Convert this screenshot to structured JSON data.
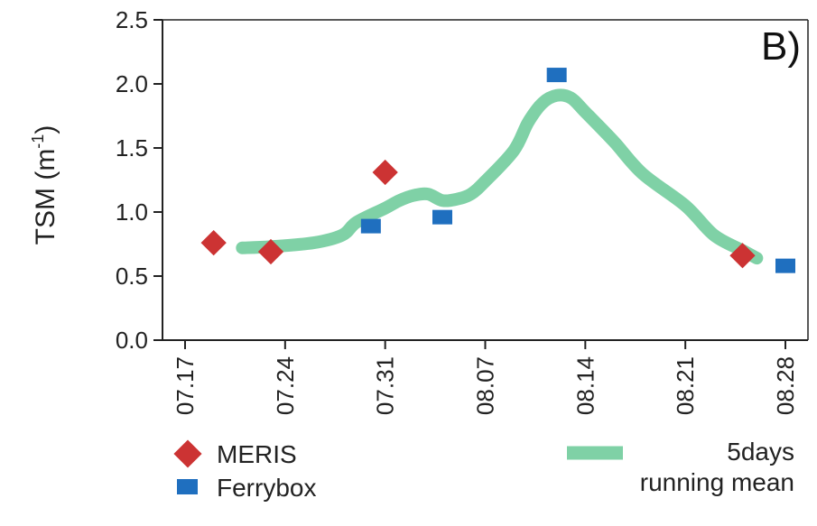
{
  "chart_data": {
    "type": "scatter",
    "panel_label": "B)",
    "ylabel_main": "TSM (m",
    "ylabel_sup": "-1",
    "ylabel_close": ")",
    "ylim": [
      0.0,
      2.5
    ],
    "yticks": [
      "0.0",
      "0.5",
      "1.0",
      "1.5",
      "2.0",
      "2.5"
    ],
    "xticks": [
      "07.17",
      "07.24",
      "07.31",
      "08.07",
      "08.14",
      "08.21",
      "08.28"
    ],
    "xlim_days": [
      0,
      42
    ],
    "grid": false,
    "legend": {
      "meris": "MERIS",
      "ferrybox": "Ferrybox",
      "mean_line1": "5days",
      "mean_line2": "running mean"
    },
    "colors": {
      "meris": "#cc3333",
      "ferrybox": "#1f6fbf",
      "mean": "#7fd1a6"
    },
    "series": [
      {
        "name": "MERIS",
        "marker": "diamond",
        "points": [
          {
            "x": "07.19",
            "y": 0.76
          },
          {
            "x": "07.23",
            "y": 0.69
          },
          {
            "x": "07.31",
            "y": 1.31
          },
          {
            "x": "08.25",
            "y": 0.66
          }
        ]
      },
      {
        "name": "Ferrybox",
        "marker": "square",
        "points": [
          {
            "x": "07.30",
            "y": 0.89
          },
          {
            "x": "08.04",
            "y": 0.96
          },
          {
            "x": "08.12",
            "y": 2.07
          },
          {
            "x": "08.28",
            "y": 0.58
          }
        ]
      },
      {
        "name": "5days running mean",
        "marker": "line",
        "points": [
          {
            "x": "07.21",
            "y": 0.72
          },
          {
            "x": "07.23",
            "y": 0.73
          },
          {
            "x": "07.26",
            "y": 0.76
          },
          {
            "x": "07.28",
            "y": 0.82
          },
          {
            "x": "07.29",
            "y": 0.92
          },
          {
            "x": "07.31",
            "y": 1.03
          },
          {
            "x": "08.01",
            "y": 1.09
          },
          {
            "x": "08.02",
            "y": 1.13
          },
          {
            "x": "08.03",
            "y": 1.14
          },
          {
            "x": "08.04",
            "y": 1.09
          },
          {
            "x": "08.05",
            "y": 1.1
          },
          {
            "x": "08.06",
            "y": 1.14
          },
          {
            "x": "08.07",
            "y": 1.24
          },
          {
            "x": "08.09",
            "y": 1.48
          },
          {
            "x": "08.10",
            "y": 1.7
          },
          {
            "x": "08.11",
            "y": 1.85
          },
          {
            "x": "08.12",
            "y": 1.91
          },
          {
            "x": "08.13",
            "y": 1.89
          },
          {
            "x": "08.14",
            "y": 1.78
          },
          {
            "x": "08.16",
            "y": 1.55
          },
          {
            "x": "08.18",
            "y": 1.3
          },
          {
            "x": "08.21",
            "y": 1.05
          },
          {
            "x": "08.23",
            "y": 0.82
          },
          {
            "x": "08.25",
            "y": 0.7
          },
          {
            "x": "08.26",
            "y": 0.64
          }
        ]
      }
    ]
  }
}
